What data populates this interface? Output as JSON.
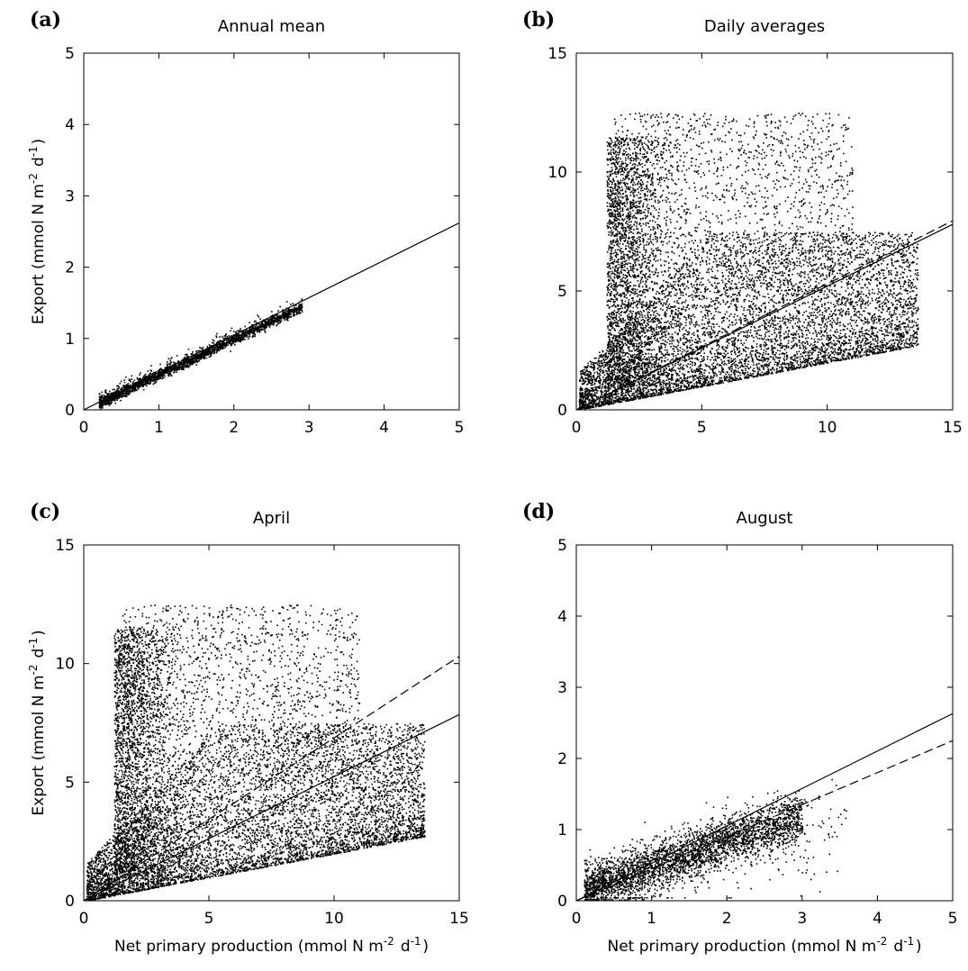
{
  "chart_data": [
    {
      "panel_label": "(a)",
      "type": "scatter",
      "title": "Annual mean",
      "xlabel": "",
      "ylabel": "Export (mmol N m^-2 d^-1)",
      "xlim": [
        0,
        5
      ],
      "ylim": [
        0,
        5
      ],
      "xticks": [
        0,
        1,
        2,
        3,
        4,
        5
      ],
      "yticks": [
        0,
        1,
        2,
        3,
        4,
        5
      ],
      "grid": false,
      "points_description_values": {
        "x_range": [
          0.2,
          2.9
        ],
        "y_over_x_ratio": 0.5,
        "spread": 0.06
      },
      "lines": [
        {
          "style": "solid",
          "x": [
            0,
            5
          ],
          "y": [
            0,
            2.62
          ]
        }
      ]
    },
    {
      "panel_label": "(b)",
      "type": "scatter",
      "title": "Daily averages",
      "xlabel": "",
      "ylabel": "",
      "xlim": [
        0,
        15
      ],
      "ylim": [
        0,
        15
      ],
      "xticks": [
        0,
        5,
        10,
        15
      ],
      "yticks": [
        0,
        5,
        10,
        15
      ],
      "grid": false,
      "points_description_values": {
        "x_range": [
          0.05,
          14.8
        ],
        "y_max": 12.6,
        "lower_envelope_slope": 0.2
      },
      "lines": [
        {
          "style": "solid",
          "x": [
            0,
            15
          ],
          "y": [
            0,
            7.8
          ]
        },
        {
          "style": "dashed",
          "x": [
            0,
            15
          ],
          "y": [
            0,
            7.95
          ]
        }
      ]
    },
    {
      "panel_label": "(c)",
      "type": "scatter",
      "title": "April",
      "xlabel": "Net primary production (mmol N m^-2 d^-1)",
      "ylabel": "Export (mmol N m^-2 d^-1)",
      "xlim": [
        0,
        15
      ],
      "ylim": [
        0,
        15
      ],
      "xticks": [
        0,
        5,
        10,
        15
      ],
      "yticks": [
        0,
        5,
        10,
        15
      ],
      "grid": false,
      "points_description_values": {
        "x_range": [
          0.05,
          14.8
        ],
        "y_max": 12.6,
        "lower_envelope_slope": 0.2
      },
      "lines": [
        {
          "style": "solid",
          "x": [
            0,
            15
          ],
          "y": [
            0,
            7.85
          ]
        },
        {
          "style": "dashed",
          "x": [
            0,
            15
          ],
          "y": [
            0,
            10.3
          ]
        }
      ]
    },
    {
      "panel_label": "(d)",
      "type": "scatter",
      "title": "August",
      "xlabel": "Net primary production (mmol N m^-2 d^-1)",
      "ylabel": "",
      "xlim": [
        0,
        5
      ],
      "ylim": [
        0,
        5
      ],
      "xticks": [
        0,
        1,
        2,
        3,
        4,
        5
      ],
      "yticks": [
        0,
        1,
        2,
        3,
        4,
        5
      ],
      "grid": false,
      "points_description_values": {
        "x_range": [
          0.1,
          3.6
        ],
        "y_max": 1.6
      },
      "lines": [
        {
          "style": "solid",
          "x": [
            0,
            5
          ],
          "y": [
            0,
            2.63
          ]
        },
        {
          "style": "dashed",
          "x": [
            0,
            5
          ],
          "y": [
            0,
            2.25
          ]
        }
      ]
    }
  ]
}
